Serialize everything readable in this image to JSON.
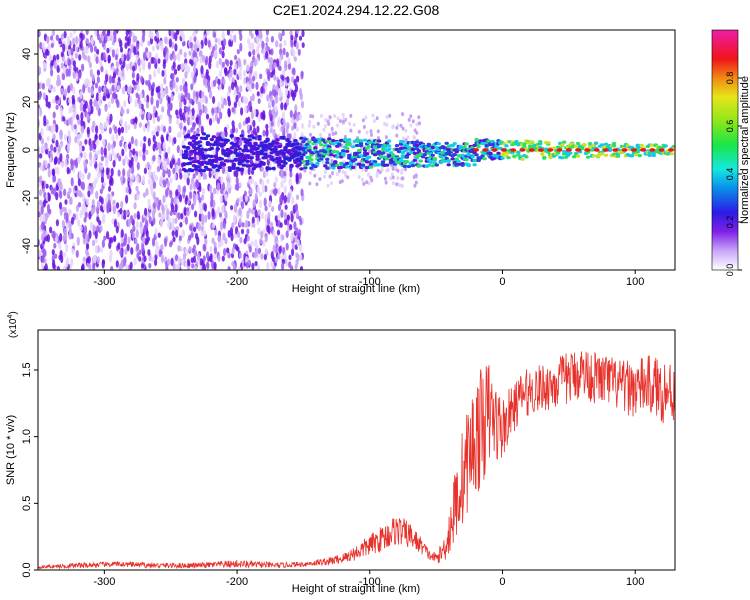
{
  "title": "C2E1.2024.294.12.22.G08",
  "colors": {
    "spectrogram_point": "#7c2fe6",
    "snr_line": "#e8312a",
    "axis": "#000000",
    "background": "#ffffff"
  },
  "chart_data": [
    {
      "type": "heatmap",
      "name": "spectrogram",
      "title": "C2E1.2024.294.12.22.G08",
      "xlabel": "Height of straight line (km)",
      "ylabel": "Frequency (Hz)",
      "xlim": [
        -350,
        130
      ],
      "ylim": [
        -50,
        50
      ],
      "xticks": [
        -300,
        -200,
        -100,
        0,
        100
      ],
      "yticks": [
        -40,
        -20,
        0,
        20,
        40
      ],
      "grid": false,
      "colorbar": {
        "label": "Normalized spectral amplitude",
        "range": [
          0,
          1
        ],
        "ticks": [
          0.0,
          0.2,
          0.4,
          0.6,
          0.8
        ],
        "tick_labels": [
          "0.0",
          "0.2",
          "0.4",
          "0.6",
          "0.8"
        ],
        "colormap": "rainbow (white→purple→blue→cyan→green→yellow→orange→red→magenta)"
      },
      "signal_track": {
        "description_center_freq_hz": 0,
        "x_start": -240,
        "x_end": 130,
        "width_hz_start": 8,
        "width_hz_end": 2
      }
    },
    {
      "type": "line",
      "name": "snr",
      "xlabel": "Height of straight line (km)",
      "ylabel": "SNR (10 * v/v)",
      "y_multiplier_label": "(x10",
      "y_multiplier_exp": "4",
      "y_multiplier_close": ")",
      "xlim": [
        -350,
        130
      ],
      "ylim": [
        0,
        1.8
      ],
      "xticks": [
        -300,
        -200,
        -100,
        0,
        100
      ],
      "yticks": [
        0.0,
        0.5,
        1.0,
        1.5
      ],
      "ytick_labels": [
        "0.0",
        "0.5",
        "1.0",
        "1.5"
      ],
      "grid": false,
      "series": [
        {
          "color": "#e8312a",
          "x": [
            -350,
            -320,
            -290,
            -260,
            -230,
            -200,
            -170,
            -150,
            -130,
            -120,
            -110,
            -100,
            -90,
            -80,
            -70,
            -60,
            -55,
            -50,
            -45,
            -40,
            -35,
            -30,
            -25,
            -20,
            -15,
            -10,
            -5,
            0,
            5,
            10,
            15,
            20,
            30,
            40,
            50,
            60,
            70,
            80,
            90,
            100,
            110,
            120,
            130
          ],
          "y": [
            0.02,
            0.03,
            0.04,
            0.03,
            0.03,
            0.04,
            0.03,
            0.04,
            0.06,
            0.08,
            0.12,
            0.17,
            0.22,
            0.28,
            0.24,
            0.16,
            0.1,
            0.08,
            0.12,
            0.25,
            0.45,
            0.62,
            0.8,
            0.9,
            1.0,
            1.1,
            1.05,
            1.0,
            1.12,
            1.2,
            1.28,
            1.3,
            1.33,
            1.36,
            1.4,
            1.45,
            1.4,
            1.38,
            1.33,
            1.32,
            1.35,
            1.3,
            1.28
          ],
          "noise": [
            0.01,
            0.02,
            0.02,
            0.02,
            0.02,
            0.03,
            0.02,
            0.02,
            0.03,
            0.04,
            0.06,
            0.08,
            0.1,
            0.12,
            0.1,
            0.06,
            0.04,
            0.04,
            0.08,
            0.2,
            0.3,
            0.38,
            0.4,
            0.45,
            0.45,
            0.4,
            0.3,
            0.25,
            0.2,
            0.18,
            0.18,
            0.18,
            0.18,
            0.2,
            0.2,
            0.2,
            0.2,
            0.2,
            0.2,
            0.22,
            0.22,
            0.25,
            0.25
          ]
        }
      ]
    }
  ]
}
